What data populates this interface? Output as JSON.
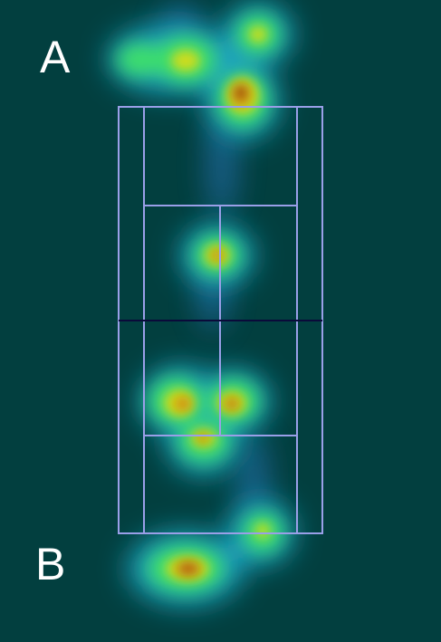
{
  "labels": {
    "top_player": "A",
    "bottom_player": "B"
  },
  "colors": {
    "background": "#023f3f",
    "court_lines": "#9a9fe8",
    "net": "#0a0a3a",
    "heat_ramp": [
      "#2f7fd0",
      "#13c7b2",
      "#3ddf6a",
      "#cddc1a",
      "#d08a10",
      "#8a2a08"
    ]
  }
}
